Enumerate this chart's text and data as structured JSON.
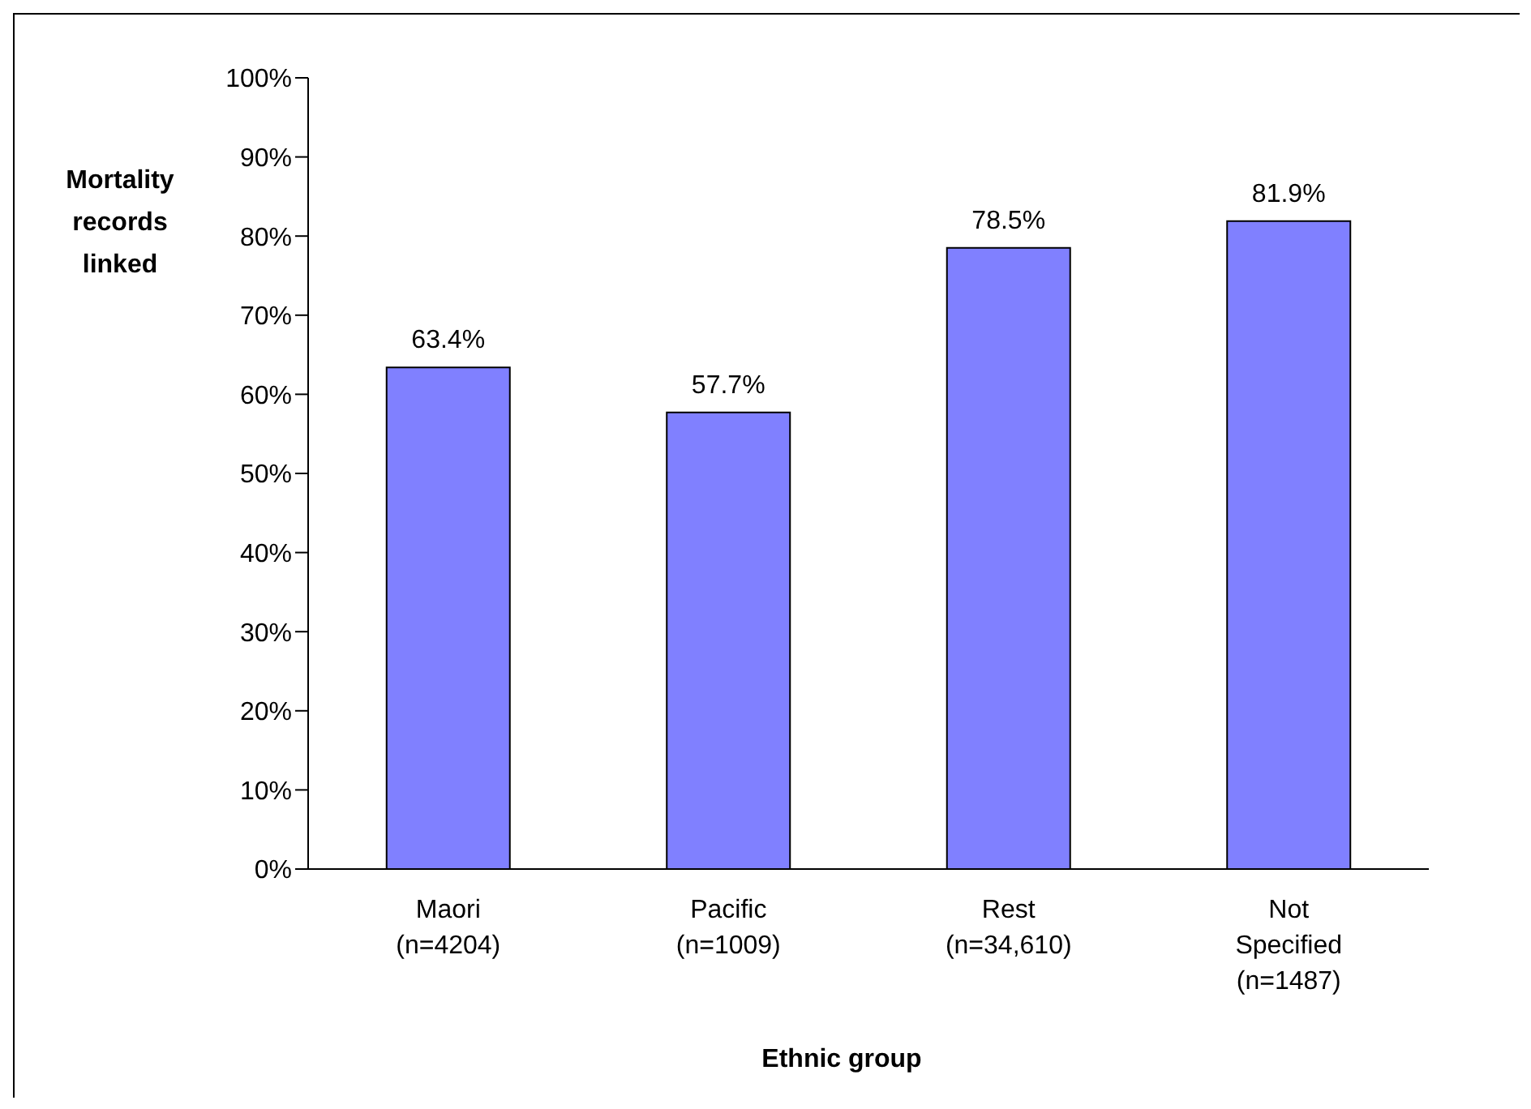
{
  "chart_data": {
    "type": "bar",
    "xlabel": "Ethnic group",
    "ylabel": "Mortality records linked",
    "categories": [
      "Maori\n(n=4204)",
      "Pacific\n(n=1009)",
      "Rest\n(n=34,610)",
      "Not\nSpecified\n(n=1487)"
    ],
    "values": [
      63.4,
      57.7,
      78.5,
      81.9
    ],
    "value_labels": [
      "63.4%",
      "57.7%",
      "78.5%",
      "81.9%"
    ],
    "color": "#8080ff",
    "ylim": [
      0,
      100
    ],
    "yticks": [
      {
        "value": 0,
        "label": "0%"
      },
      {
        "value": 10,
        "label": "10%"
      },
      {
        "value": 20,
        "label": "20%"
      },
      {
        "value": 30,
        "label": "30%"
      },
      {
        "value": 40,
        "label": "40%"
      },
      {
        "value": 50,
        "label": "50%"
      },
      {
        "value": 60,
        "label": "60%"
      },
      {
        "value": 70,
        "label": "70%"
      },
      {
        "value": 80,
        "label": "80%"
      },
      {
        "value": 90,
        "label": "90%"
      },
      {
        "value": 100,
        "label": "100%"
      }
    ],
    "grid": false,
    "legend": false
  }
}
